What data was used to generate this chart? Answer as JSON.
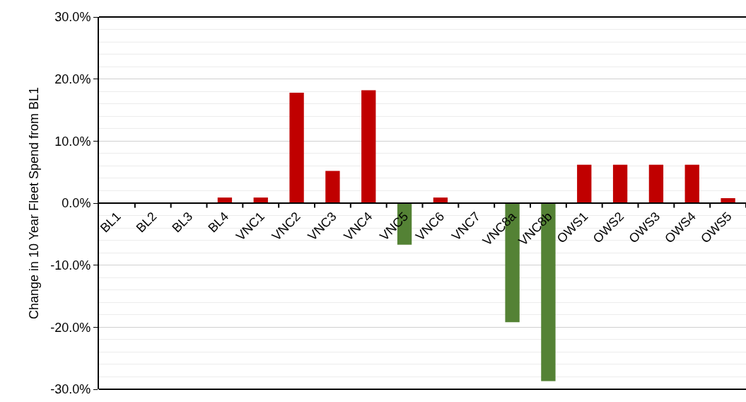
{
  "chart_data": {
    "type": "bar",
    "ylabel": "Change in 10 Year Fleet Spend from BL1",
    "categories": [
      "BL1",
      "BL2",
      "BL3",
      "BL4",
      "VNC1",
      "VNC2",
      "VNC3",
      "VNC4",
      "VNC5",
      "VNC6",
      "VNC7",
      "VNC8a",
      "VNC8b",
      "OWS1",
      "OWS2",
      "OWS3",
      "OWS4",
      "OWS5"
    ],
    "values": [
      0,
      0,
      0,
      0.9,
      0.9,
      17.8,
      5.2,
      18.2,
      -6.7,
      0.9,
      0,
      -19.2,
      -28.7,
      6.2,
      6.2,
      6.2,
      6.2,
      0.8
    ],
    "colors": [
      "#c00000",
      "#c00000",
      "#c00000",
      "#c00000",
      "#c00000",
      "#c00000",
      "#c00000",
      "#c00000",
      "#548235",
      "#c00000",
      "#c00000",
      "#548235",
      "#548235",
      "#c00000",
      "#c00000",
      "#c00000",
      "#c00000",
      "#c00000"
    ],
    "ylim": [
      -30,
      30
    ],
    "yticks": [
      {
        "value": -30,
        "label": "-30.0%"
      },
      {
        "value": -20,
        "label": "-20.0%"
      },
      {
        "value": -10,
        "label": "-10.0%"
      },
      {
        "value": 0,
        "label": "0.0%"
      },
      {
        "value": 10,
        "label": "10.0%"
      },
      {
        "value": 20,
        "label": "20.0%"
      },
      {
        "value": 30,
        "label": "30.0%"
      }
    ],
    "grid": true
  }
}
